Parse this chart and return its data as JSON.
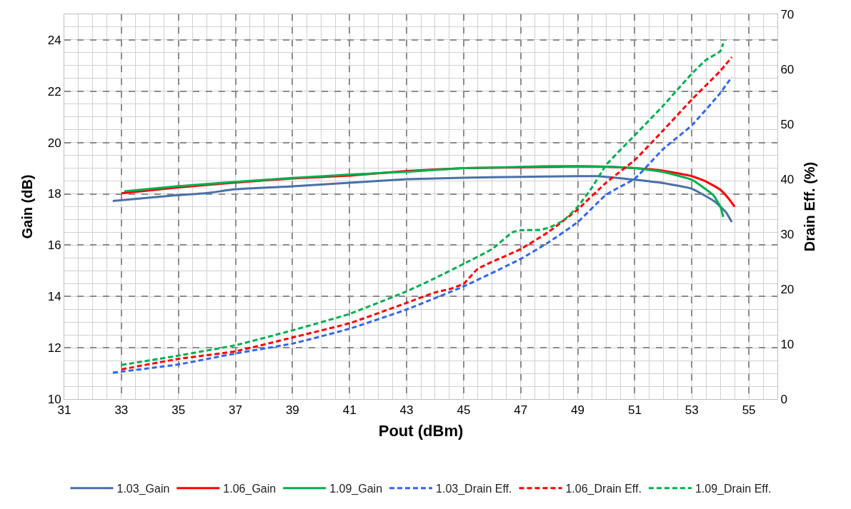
{
  "chart_data": {
    "type": "line",
    "xlabel": "Pout (dBm)",
    "ylabel": "Gain (dB)",
    "y2label": "Drain Eff. (%)",
    "xlim": [
      31,
      56
    ],
    "xticks": [
      31,
      33,
      35,
      37,
      39,
      41,
      43,
      45,
      47,
      49,
      51,
      53,
      55
    ],
    "ylim": [
      10,
      25
    ],
    "yticks": [
      10,
      12,
      14,
      16,
      18,
      20,
      22,
      24
    ],
    "y2lim": [
      0,
      70
    ],
    "y2ticks": [
      0,
      10,
      20,
      30,
      40,
      50,
      60,
      70
    ],
    "grid": true,
    "legend": "bottom",
    "marker": "none",
    "series": [
      {
        "name": "1.03_Gain",
        "color": "#4a70a8",
        "line_style": "solid",
        "x": [
          32.7,
          35,
          36,
          37,
          39,
          41,
          43,
          45,
          47,
          49,
          49.7,
          51,
          52,
          53,
          53.8,
          54.2,
          54.4
        ],
        "values": [
          17.72,
          17.95,
          18.03,
          18.18,
          18.29,
          18.43,
          18.57,
          18.63,
          18.66,
          18.69,
          18.69,
          18.55,
          18.42,
          18.2,
          17.7,
          17.28,
          16.9
        ]
      },
      {
        "name": "1.06_Gain",
        "color": "#ff0000",
        "line_style": "solid",
        "x": [
          33,
          35,
          37,
          39,
          41,
          43,
          45,
          47,
          49,
          50,
          51,
          52,
          53,
          53.5,
          54,
          54.3,
          54.5
        ],
        "values": [
          18.02,
          18.25,
          18.44,
          18.6,
          18.71,
          18.89,
          19.0,
          19.03,
          19.07,
          19.06,
          19.0,
          18.9,
          18.69,
          18.48,
          18.16,
          17.8,
          17.5
        ]
      },
      {
        "name": "1.09_Gain",
        "color": "#00b050",
        "line_style": "solid",
        "x": [
          33.1,
          35,
          37,
          39,
          41,
          43,
          45,
          47,
          48,
          49,
          50,
          51,
          52,
          53,
          53.75,
          54.0,
          54.1
        ],
        "values": [
          18.1,
          18.3,
          18.47,
          18.62,
          18.75,
          18.86,
          19.0,
          19.05,
          19.08,
          19.08,
          19.06,
          19.0,
          18.85,
          18.55,
          17.95,
          17.5,
          17.1
        ]
      },
      {
        "name": "1.03_Drain Eff.",
        "color": "#3366ee",
        "line_style": "dashed",
        "axis": "y2",
        "x": [
          32.7,
          35,
          37,
          39,
          41,
          43,
          45,
          47,
          48,
          49,
          50,
          51,
          52,
          53,
          54,
          54.4
        ],
        "values": [
          4.8,
          6.3,
          8.3,
          10.1,
          12.8,
          16.3,
          20.5,
          25.5,
          28.6,
          32.2,
          37.2,
          40.1,
          45.5,
          49.8,
          55.7,
          58.6
        ]
      },
      {
        "name": "1.06_Drain Eff.",
        "color": "#ff0000",
        "line_style": "dashed",
        "axis": "y2",
        "x": [
          33,
          35,
          37,
          39,
          41,
          43,
          44,
          44.5,
          45,
          45.5,
          47,
          48,
          49,
          50,
          51,
          52,
          53,
          54,
          54.4
        ],
        "values": [
          5.4,
          7.3,
          8.7,
          11.2,
          13.8,
          17.5,
          19.4,
          20.0,
          21.0,
          23.7,
          27.3,
          30.5,
          34.5,
          39.4,
          43.5,
          48.9,
          54.5,
          59.7,
          62.2
        ]
      },
      {
        "name": "1.09_Drain Eff.",
        "color": "#00b050",
        "line_style": "dashed",
        "axis": "y2",
        "x": [
          33,
          35,
          37,
          39,
          41,
          43,
          44,
          45,
          46,
          46.7,
          47,
          47.7,
          48,
          48.5,
          49,
          49.5,
          50,
          51,
          52,
          53,
          53.5,
          54,
          54.1
        ],
        "values": [
          6.2,
          7.9,
          9.8,
          12.5,
          15.5,
          19.6,
          22.0,
          24.6,
          27.3,
          30.3,
          30.7,
          30.8,
          31.2,
          32.5,
          35.0,
          38.5,
          42.6,
          48.0,
          53.4,
          59.2,
          61.7,
          63.3,
          64.7
        ]
      }
    ]
  }
}
